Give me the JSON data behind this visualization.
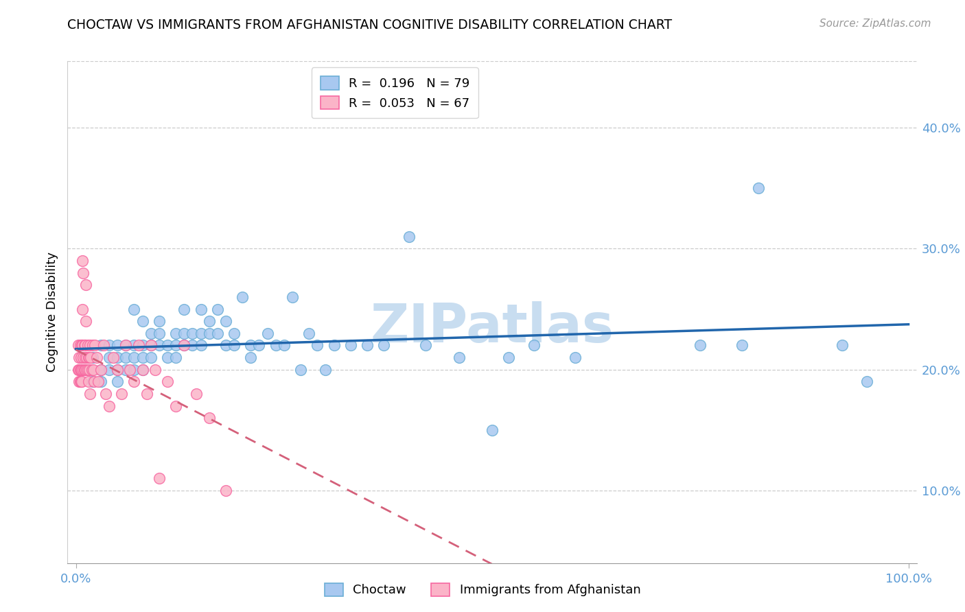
{
  "title": "CHOCTAW VS IMMIGRANTS FROM AFGHANISTAN COGNITIVE DISABILITY CORRELATION CHART",
  "source": "Source: ZipAtlas.com",
  "ylabel_label": "Cognitive Disability",
  "x_tick_labels": [
    "0.0%",
    "100.0%"
  ],
  "x_tick_values": [
    0.0,
    1.0
  ],
  "y_tick_labels": [
    "10.0%",
    "20.0%",
    "30.0%",
    "40.0%"
  ],
  "y_tick_values": [
    0.1,
    0.2,
    0.3,
    0.4
  ],
  "xlim": [
    -0.01,
    1.01
  ],
  "ylim": [
    0.04,
    0.455
  ],
  "choctaw_color": "#6baed6",
  "afghanistan_color": "#f768a1",
  "choctaw_marker_fill": "#a8c8f0",
  "afghanistan_marker_fill": "#fbb4c8",
  "trend_choctaw_color": "#2166ac",
  "trend_afghanistan_color": "#d4607a",
  "watermark": "ZIPatlas",
  "watermark_color": "#c8ddf0",
  "choctaw_x": [
    0.01,
    0.02,
    0.02,
    0.03,
    0.03,
    0.03,
    0.04,
    0.04,
    0.04,
    0.05,
    0.05,
    0.05,
    0.05,
    0.06,
    0.06,
    0.06,
    0.07,
    0.07,
    0.07,
    0.07,
    0.08,
    0.08,
    0.08,
    0.08,
    0.09,
    0.09,
    0.09,
    0.1,
    0.1,
    0.1,
    0.11,
    0.11,
    0.12,
    0.12,
    0.12,
    0.13,
    0.13,
    0.13,
    0.14,
    0.14,
    0.15,
    0.15,
    0.15,
    0.16,
    0.16,
    0.17,
    0.17,
    0.18,
    0.18,
    0.19,
    0.19,
    0.2,
    0.21,
    0.21,
    0.22,
    0.23,
    0.24,
    0.25,
    0.26,
    0.27,
    0.28,
    0.29,
    0.3,
    0.31,
    0.33,
    0.35,
    0.37,
    0.4,
    0.42,
    0.46,
    0.5,
    0.52,
    0.55,
    0.6,
    0.75,
    0.8,
    0.82,
    0.92,
    0.95
  ],
  "choctaw_y": [
    0.2,
    0.21,
    0.19,
    0.22,
    0.2,
    0.19,
    0.22,
    0.21,
    0.2,
    0.22,
    0.2,
    0.21,
    0.19,
    0.22,
    0.2,
    0.21,
    0.25,
    0.22,
    0.21,
    0.2,
    0.24,
    0.22,
    0.21,
    0.2,
    0.23,
    0.22,
    0.21,
    0.24,
    0.23,
    0.22,
    0.22,
    0.21,
    0.23,
    0.22,
    0.21,
    0.25,
    0.23,
    0.22,
    0.23,
    0.22,
    0.25,
    0.23,
    0.22,
    0.24,
    0.23,
    0.25,
    0.23,
    0.22,
    0.24,
    0.23,
    0.22,
    0.26,
    0.22,
    0.21,
    0.22,
    0.23,
    0.22,
    0.22,
    0.26,
    0.2,
    0.23,
    0.22,
    0.2,
    0.22,
    0.22,
    0.22,
    0.22,
    0.31,
    0.22,
    0.21,
    0.15,
    0.21,
    0.22,
    0.21,
    0.22,
    0.22,
    0.35,
    0.22,
    0.19
  ],
  "afghanistan_x": [
    0.003,
    0.003,
    0.004,
    0.004,
    0.004,
    0.005,
    0.005,
    0.005,
    0.006,
    0.006,
    0.006,
    0.007,
    0.007,
    0.007,
    0.008,
    0.008,
    0.008,
    0.009,
    0.009,
    0.009,
    0.01,
    0.01,
    0.011,
    0.011,
    0.011,
    0.012,
    0.012,
    0.013,
    0.013,
    0.014,
    0.014,
    0.015,
    0.015,
    0.016,
    0.016,
    0.017,
    0.017,
    0.018,
    0.019,
    0.02,
    0.021,
    0.022,
    0.023,
    0.025,
    0.027,
    0.03,
    0.033,
    0.036,
    0.04,
    0.045,
    0.05,
    0.055,
    0.06,
    0.065,
    0.07,
    0.075,
    0.08,
    0.085,
    0.09,
    0.095,
    0.1,
    0.11,
    0.12,
    0.13,
    0.145,
    0.16,
    0.18
  ],
  "afghanistan_y": [
    0.2,
    0.22,
    0.21,
    0.2,
    0.19,
    0.22,
    0.2,
    0.19,
    0.21,
    0.2,
    0.19,
    0.22,
    0.2,
    0.19,
    0.29,
    0.25,
    0.22,
    0.28,
    0.21,
    0.2,
    0.22,
    0.2,
    0.21,
    0.2,
    0.22,
    0.27,
    0.24,
    0.21,
    0.2,
    0.22,
    0.2,
    0.21,
    0.19,
    0.21,
    0.2,
    0.22,
    0.18,
    0.21,
    0.2,
    0.22,
    0.2,
    0.19,
    0.22,
    0.21,
    0.19,
    0.2,
    0.22,
    0.18,
    0.17,
    0.21,
    0.2,
    0.18,
    0.22,
    0.2,
    0.19,
    0.22,
    0.2,
    0.18,
    0.22,
    0.2,
    0.11,
    0.19,
    0.17,
    0.22,
    0.18,
    0.16,
    0.1
  ]
}
